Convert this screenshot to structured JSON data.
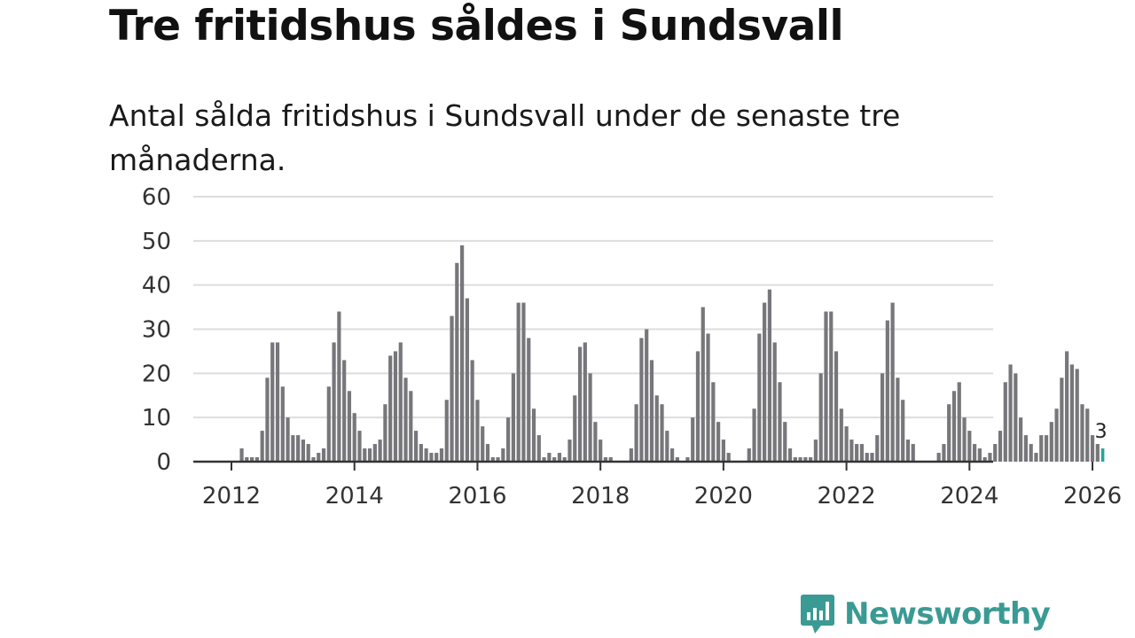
{
  "title": "Tre fritidshus såldes i Sundsvall",
  "subtitle": "Antal sålda fritidshus i Sundsvall under de senaste tre månaderna.",
  "brand": {
    "name": "Newsworthy",
    "color": "#3a9a94"
  },
  "colors": {
    "bar": "#77767b",
    "highlight": "#2aa39a",
    "grid": "#dddddd",
    "axis": "#333333"
  },
  "chart_data": {
    "type": "bar",
    "title": "Tre fritidshus såldes i Sundsvall",
    "xlabel": "",
    "ylabel": "",
    "ylim": [
      0,
      60
    ],
    "yticks": [
      0,
      10,
      20,
      30,
      40,
      50,
      60
    ],
    "xticks": [
      "2012",
      "2014",
      "2016",
      "2018",
      "2020",
      "2022",
      "2024",
      "2026"
    ],
    "start": "2012-01",
    "end": "2026-02",
    "values": [
      0,
      0,
      3,
      1,
      1,
      1,
      7,
      19,
      27,
      27,
      17,
      10,
      6,
      6,
      5,
      4,
      1,
      2,
      3,
      17,
      27,
      34,
      23,
      16,
      11,
      7,
      3,
      3,
      4,
      5,
      13,
      24,
      25,
      27,
      19,
      16,
      7,
      4,
      3,
      2,
      2,
      3,
      14,
      33,
      45,
      49,
      37,
      23,
      14,
      8,
      4,
      1,
      1,
      3,
      10,
      20,
      36,
      36,
      28,
      12,
      6,
      1,
      2,
      1,
      2,
      1,
      5,
      15,
      26,
      27,
      20,
      9,
      5,
      1,
      1,
      0,
      0,
      0,
      3,
      13,
      28,
      30,
      23,
      15,
      13,
      7,
      3,
      1,
      0,
      1,
      10,
      25,
      35,
      29,
      18,
      9,
      5,
      2,
      0,
      0,
      0,
      3,
      12,
      29,
      36,
      39,
      27,
      18,
      9,
      3,
      1,
      1,
      1,
      1,
      5,
      20,
      34,
      34,
      25,
      12,
      8,
      5,
      4,
      4,
      2,
      2,
      6,
      20,
      32,
      36,
      19,
      14,
      5,
      4,
      0,
      0,
      0,
      0,
      2,
      4,
      13,
      16,
      18,
      10,
      7,
      4,
      3,
      1,
      2,
      4,
      7,
      18,
      22,
      20,
      10,
      6,
      4,
      2,
      6,
      6,
      9,
      12,
      19,
      25,
      22,
      21,
      13,
      12,
      6,
      4,
      3
    ],
    "last_value_label": "3"
  }
}
